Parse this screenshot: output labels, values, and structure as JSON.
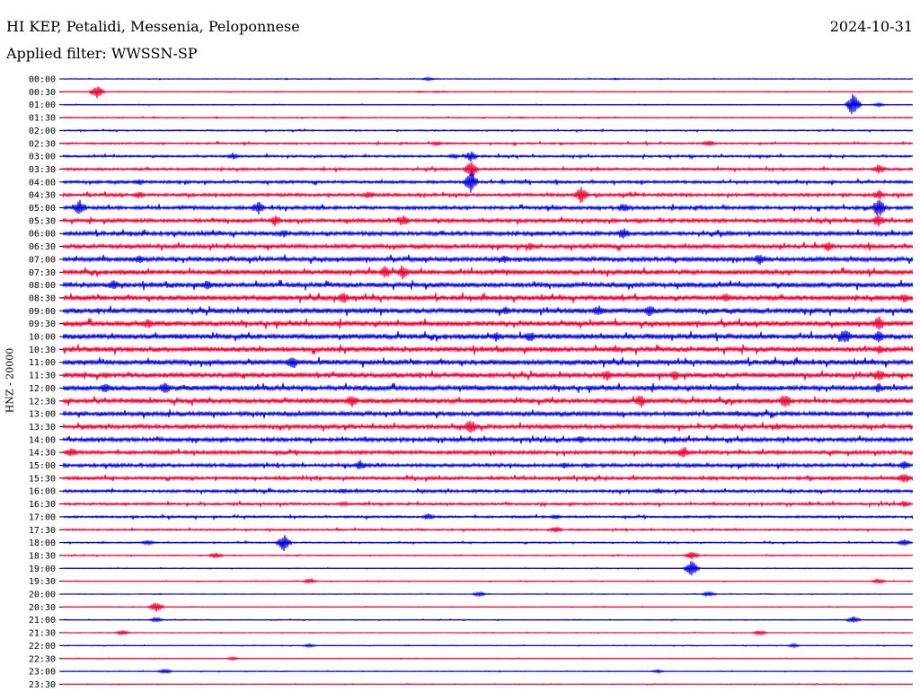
{
  "header": {
    "station": "HI KEP, Petalidi, Messenia, Peloponnese",
    "date": "2024-10-31",
    "filter": "Applied filter: WWSSN-SP"
  },
  "chart_data": {
    "type": "line",
    "subtype": "helicorder",
    "ylabel": "HNZ - 20000",
    "colors": [
      "#0000dd",
      "#ee0033"
    ],
    "rows": [
      {
        "label": "00:00",
        "events": [
          [
            0.43,
            2
          ],
          [
            0.65,
            1
          ]
        ]
      },
      {
        "label": "00:30",
        "events": [
          [
            0.04,
            8
          ],
          [
            0.42,
            1
          ],
          [
            0.44,
            1
          ]
        ]
      },
      {
        "label": "01:00",
        "events": [
          [
            0.93,
            14
          ],
          [
            0.96,
            2
          ]
        ]
      },
      {
        "label": "01:30",
        "events": [
          [
            0.33,
            1
          ],
          [
            0.54,
            1
          ]
        ]
      },
      {
        "label": "02:00",
        "events": []
      },
      {
        "label": "02:30",
        "events": [
          [
            0.44,
            3
          ],
          [
            0.76,
            4
          ]
        ]
      },
      {
        "label": "03:00",
        "events": [
          [
            0.2,
            4
          ],
          [
            0.46,
            3
          ],
          [
            0.48,
            6
          ]
        ]
      },
      {
        "label": "03:30",
        "events": [
          [
            0.48,
            10
          ],
          [
            0.96,
            6
          ]
        ]
      },
      {
        "label": "04:00",
        "events": [
          [
            0.09,
            4
          ],
          [
            0.48,
            14
          ],
          [
            0.54,
            2
          ]
        ]
      },
      {
        "label": "04:30",
        "events": [
          [
            0.09,
            5
          ],
          [
            0.36,
            5
          ],
          [
            0.61,
            10
          ],
          [
            0.96,
            6
          ]
        ]
      },
      {
        "label": "05:00",
        "events": [
          [
            0.02,
            9
          ],
          [
            0.23,
            8
          ],
          [
            0.66,
            6
          ],
          [
            0.96,
            11
          ]
        ]
      },
      {
        "label": "05:30",
        "events": [
          [
            0.25,
            7
          ],
          [
            0.4,
            7
          ],
          [
            0.96,
            8
          ]
        ]
      },
      {
        "label": "06:00",
        "events": [
          [
            0.26,
            5
          ],
          [
            0.66,
            7
          ]
        ]
      },
      {
        "label": "06:30",
        "events": [
          [
            0.55,
            5
          ],
          [
            0.9,
            6
          ]
        ]
      },
      {
        "label": "07:00",
        "events": [
          [
            0.09,
            5
          ],
          [
            0.52,
            5
          ],
          [
            0.82,
            7
          ]
        ]
      },
      {
        "label": "07:30",
        "events": [
          [
            0.38,
            8
          ],
          [
            0.4,
            9
          ]
        ]
      },
      {
        "label": "08:00",
        "events": [
          [
            0.06,
            6
          ],
          [
            0.17,
            6
          ]
        ]
      },
      {
        "label": "08:30",
        "events": [
          [
            0.33,
            7
          ],
          [
            0.78,
            6
          ],
          [
            0.99,
            6
          ]
        ]
      },
      {
        "label": "09:00",
        "events": [
          [
            0.52,
            5
          ],
          [
            0.63,
            7
          ],
          [
            0.69,
            8
          ]
        ]
      },
      {
        "label": "09:30",
        "events": [
          [
            0.1,
            6
          ],
          [
            0.96,
            9
          ]
        ]
      },
      {
        "label": "10:00",
        "events": [
          [
            0.51,
            6
          ],
          [
            0.55,
            7
          ],
          [
            0.92,
            10
          ],
          [
            0.96,
            8
          ]
        ]
      },
      {
        "label": "10:30",
        "events": [
          [
            0.65,
            5
          ],
          [
            0.96,
            6
          ]
        ]
      },
      {
        "label": "11:00",
        "events": [
          [
            0.27,
            9
          ],
          [
            0.52,
            3
          ]
        ]
      },
      {
        "label": "11:30",
        "events": [
          [
            0.05,
            4
          ],
          [
            0.64,
            7
          ],
          [
            0.72,
            6
          ],
          [
            0.96,
            8
          ]
        ]
      },
      {
        "label": "12:00",
        "events": [
          [
            0.05,
            7
          ],
          [
            0.12,
            7
          ],
          [
            0.96,
            6
          ]
        ]
      },
      {
        "label": "12:30",
        "events": [
          [
            0.34,
            8
          ],
          [
            0.68,
            8
          ],
          [
            0.85,
            9
          ]
        ]
      },
      {
        "label": "13:00",
        "events": [
          [
            0.5,
            3
          ],
          [
            0.72,
            3
          ]
        ]
      },
      {
        "label": "13:30",
        "events": [
          [
            0.48,
            9
          ],
          [
            0.78,
            4
          ],
          [
            0.84,
            4
          ]
        ]
      },
      {
        "label": "14:00",
        "events": [
          [
            0.61,
            5
          ],
          [
            0.72,
            4
          ]
        ]
      },
      {
        "label": "14:30",
        "events": [
          [
            0.01,
            6
          ],
          [
            0.73,
            8
          ]
        ]
      },
      {
        "label": "15:00",
        "events": [
          [
            0.35,
            6
          ],
          [
            0.59,
            4
          ],
          [
            0.99,
            5
          ]
        ]
      },
      {
        "label": "15:30",
        "events": [
          [
            0.99,
            7
          ]
        ]
      },
      {
        "label": "16:00",
        "events": [
          [
            0.33,
            3
          ],
          [
            0.7,
            3
          ]
        ]
      },
      {
        "label": "16:30",
        "events": [
          [
            0.33,
            3
          ],
          [
            0.99,
            4
          ]
        ]
      },
      {
        "label": "17:00",
        "events": [
          [
            0.43,
            4
          ],
          [
            0.58,
            3
          ]
        ]
      },
      {
        "label": "17:30",
        "events": [
          [
            0.58,
            4
          ]
        ]
      },
      {
        "label": "18:00",
        "events": [
          [
            0.1,
            3
          ],
          [
            0.26,
            10
          ],
          [
            0.99,
            4
          ]
        ]
      },
      {
        "label": "18:30",
        "events": [
          [
            0.18,
            4
          ],
          [
            0.74,
            5
          ]
        ]
      },
      {
        "label": "19:00",
        "events": [
          [
            0.74,
            10
          ]
        ]
      },
      {
        "label": "19:30",
        "events": [
          [
            0.29,
            3
          ],
          [
            0.96,
            3
          ]
        ]
      },
      {
        "label": "20:00",
        "events": [
          [
            0.49,
            3
          ],
          [
            0.76,
            3
          ]
        ]
      },
      {
        "label": "20:30",
        "events": [
          [
            0.11,
            7
          ]
        ]
      },
      {
        "label": "21:00",
        "events": [
          [
            0.11,
            3
          ],
          [
            0.93,
            4
          ]
        ]
      },
      {
        "label": "21:30",
        "events": [
          [
            0.07,
            3
          ],
          [
            0.82,
            3
          ]
        ]
      },
      {
        "label": "22:00",
        "events": [
          [
            0.29,
            2
          ],
          [
            0.86,
            2
          ]
        ]
      },
      {
        "label": "22:30",
        "events": [
          [
            0.2,
            2
          ]
        ]
      },
      {
        "label": "23:00",
        "events": [
          [
            0.12,
            3
          ],
          [
            0.7,
            2
          ]
        ]
      },
      {
        "label": "23:30",
        "events": []
      }
    ]
  }
}
